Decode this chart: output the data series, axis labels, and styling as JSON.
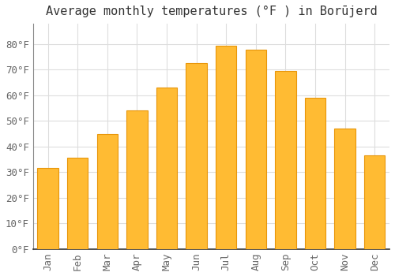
{
  "title": "Average monthly temperatures (°F ) in Borūjerd",
  "months": [
    "Jan",
    "Feb",
    "Mar",
    "Apr",
    "May",
    "Jun",
    "Jul",
    "Aug",
    "Sep",
    "Oct",
    "Nov",
    "Dec"
  ],
  "values": [
    31.5,
    35.5,
    45,
    54,
    63,
    72.5,
    79.5,
    78,
    69.5,
    59,
    47,
    36.5
  ],
  "bar_color": "#FFBB33",
  "bar_edge_color": "#E8960A",
  "background_color": "#FFFFFF",
  "grid_color": "#DDDDDD",
  "ylim": [
    0,
    88
  ],
  "yticks": [
    0,
    10,
    20,
    30,
    40,
    50,
    60,
    70,
    80
  ],
  "title_fontsize": 11,
  "tick_fontsize": 9,
  "font_family": "monospace"
}
